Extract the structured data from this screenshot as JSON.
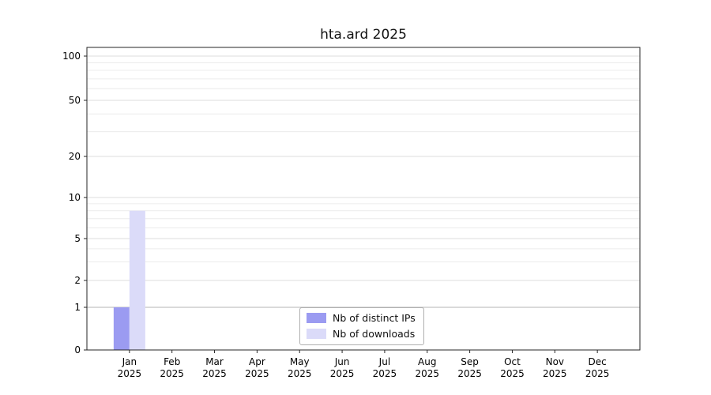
{
  "title": "hta.ard 2025",
  "colors": {
    "distinct_ips": "#9b9bf1",
    "downloads": "#dbdbf9",
    "grid_minor": "#ececec",
    "grid_major": "#dcdcdc",
    "grid_emphasis": "#b5b5b5",
    "axis": "#262626",
    "text": "#000000"
  },
  "chart_data": {
    "type": "bar",
    "title": "hta.ard 2025",
    "months": [
      "Jan",
      "Feb",
      "Mar",
      "Apr",
      "May",
      "Jun",
      "Jul",
      "Aug",
      "Sep",
      "Oct",
      "Nov",
      "Dec"
    ],
    "year": "2025",
    "categories": [
      "Jan 2025",
      "Feb 2025",
      "Mar 2025",
      "Apr 2025",
      "May 2025",
      "Jun 2025",
      "Jul 2025",
      "Aug 2025",
      "Sep 2025",
      "Oct 2025",
      "Nov 2025",
      "Dec 2025"
    ],
    "series": [
      {
        "name": "Nb of distinct IPs",
        "color": "#9b9bf1",
        "values": [
          1,
          0,
          0,
          0,
          0,
          0,
          0,
          0,
          0,
          0,
          0,
          0
        ]
      },
      {
        "name": "Nb of downloads",
        "color": "#dbdbf9",
        "values": [
          8,
          0,
          0,
          0,
          0,
          0,
          0,
          0,
          0,
          0,
          0,
          0
        ]
      }
    ],
    "y_axis": {
      "scale": "symlog",
      "ticks": [
        0,
        1,
        2,
        5,
        10,
        20,
        50,
        100
      ],
      "minor_ticks": [
        3,
        4,
        6,
        7,
        8,
        9,
        30,
        40,
        60,
        70,
        80,
        90
      ],
      "range": [
        0,
        100
      ],
      "emphasis_ticks": [
        1
      ]
    },
    "x_axis": {
      "label": "",
      "tick_count": 12
    },
    "grid": "horizontal",
    "legend": {
      "position": "bottom-center",
      "entries": [
        "Nb of distinct IPs",
        "Nb of downloads"
      ]
    }
  }
}
